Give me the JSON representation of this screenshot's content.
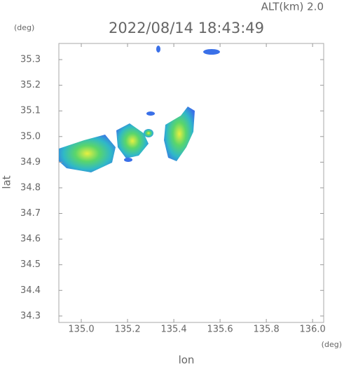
{
  "chart_data": {
    "type": "map",
    "altitude_label": "ALT(km)  2.0",
    "title": "2022/08/14 18:43:49",
    "y_unit": "(deg)",
    "x_unit": "(deg)",
    "ylabel": "lat",
    "xlabel": "lon",
    "xlim": [
      134.903,
      136.048
    ],
    "ylim": [
      34.275,
      35.363
    ],
    "xticks": [
      {
        "value": 135,
        "label": "135.0"
      },
      135.2,
      135.4,
      135.6,
      135.8,
      {
        "value": 136,
        "label": "136.0"
      }
    ],
    "yticks": [
      34.3,
      34.4,
      34.5,
      34.6,
      34.7,
      34.8,
      34.9,
      {
        "value": 35,
        "label": "35.0"
      },
      35.1,
      35.2,
      35.3
    ]
  }
}
